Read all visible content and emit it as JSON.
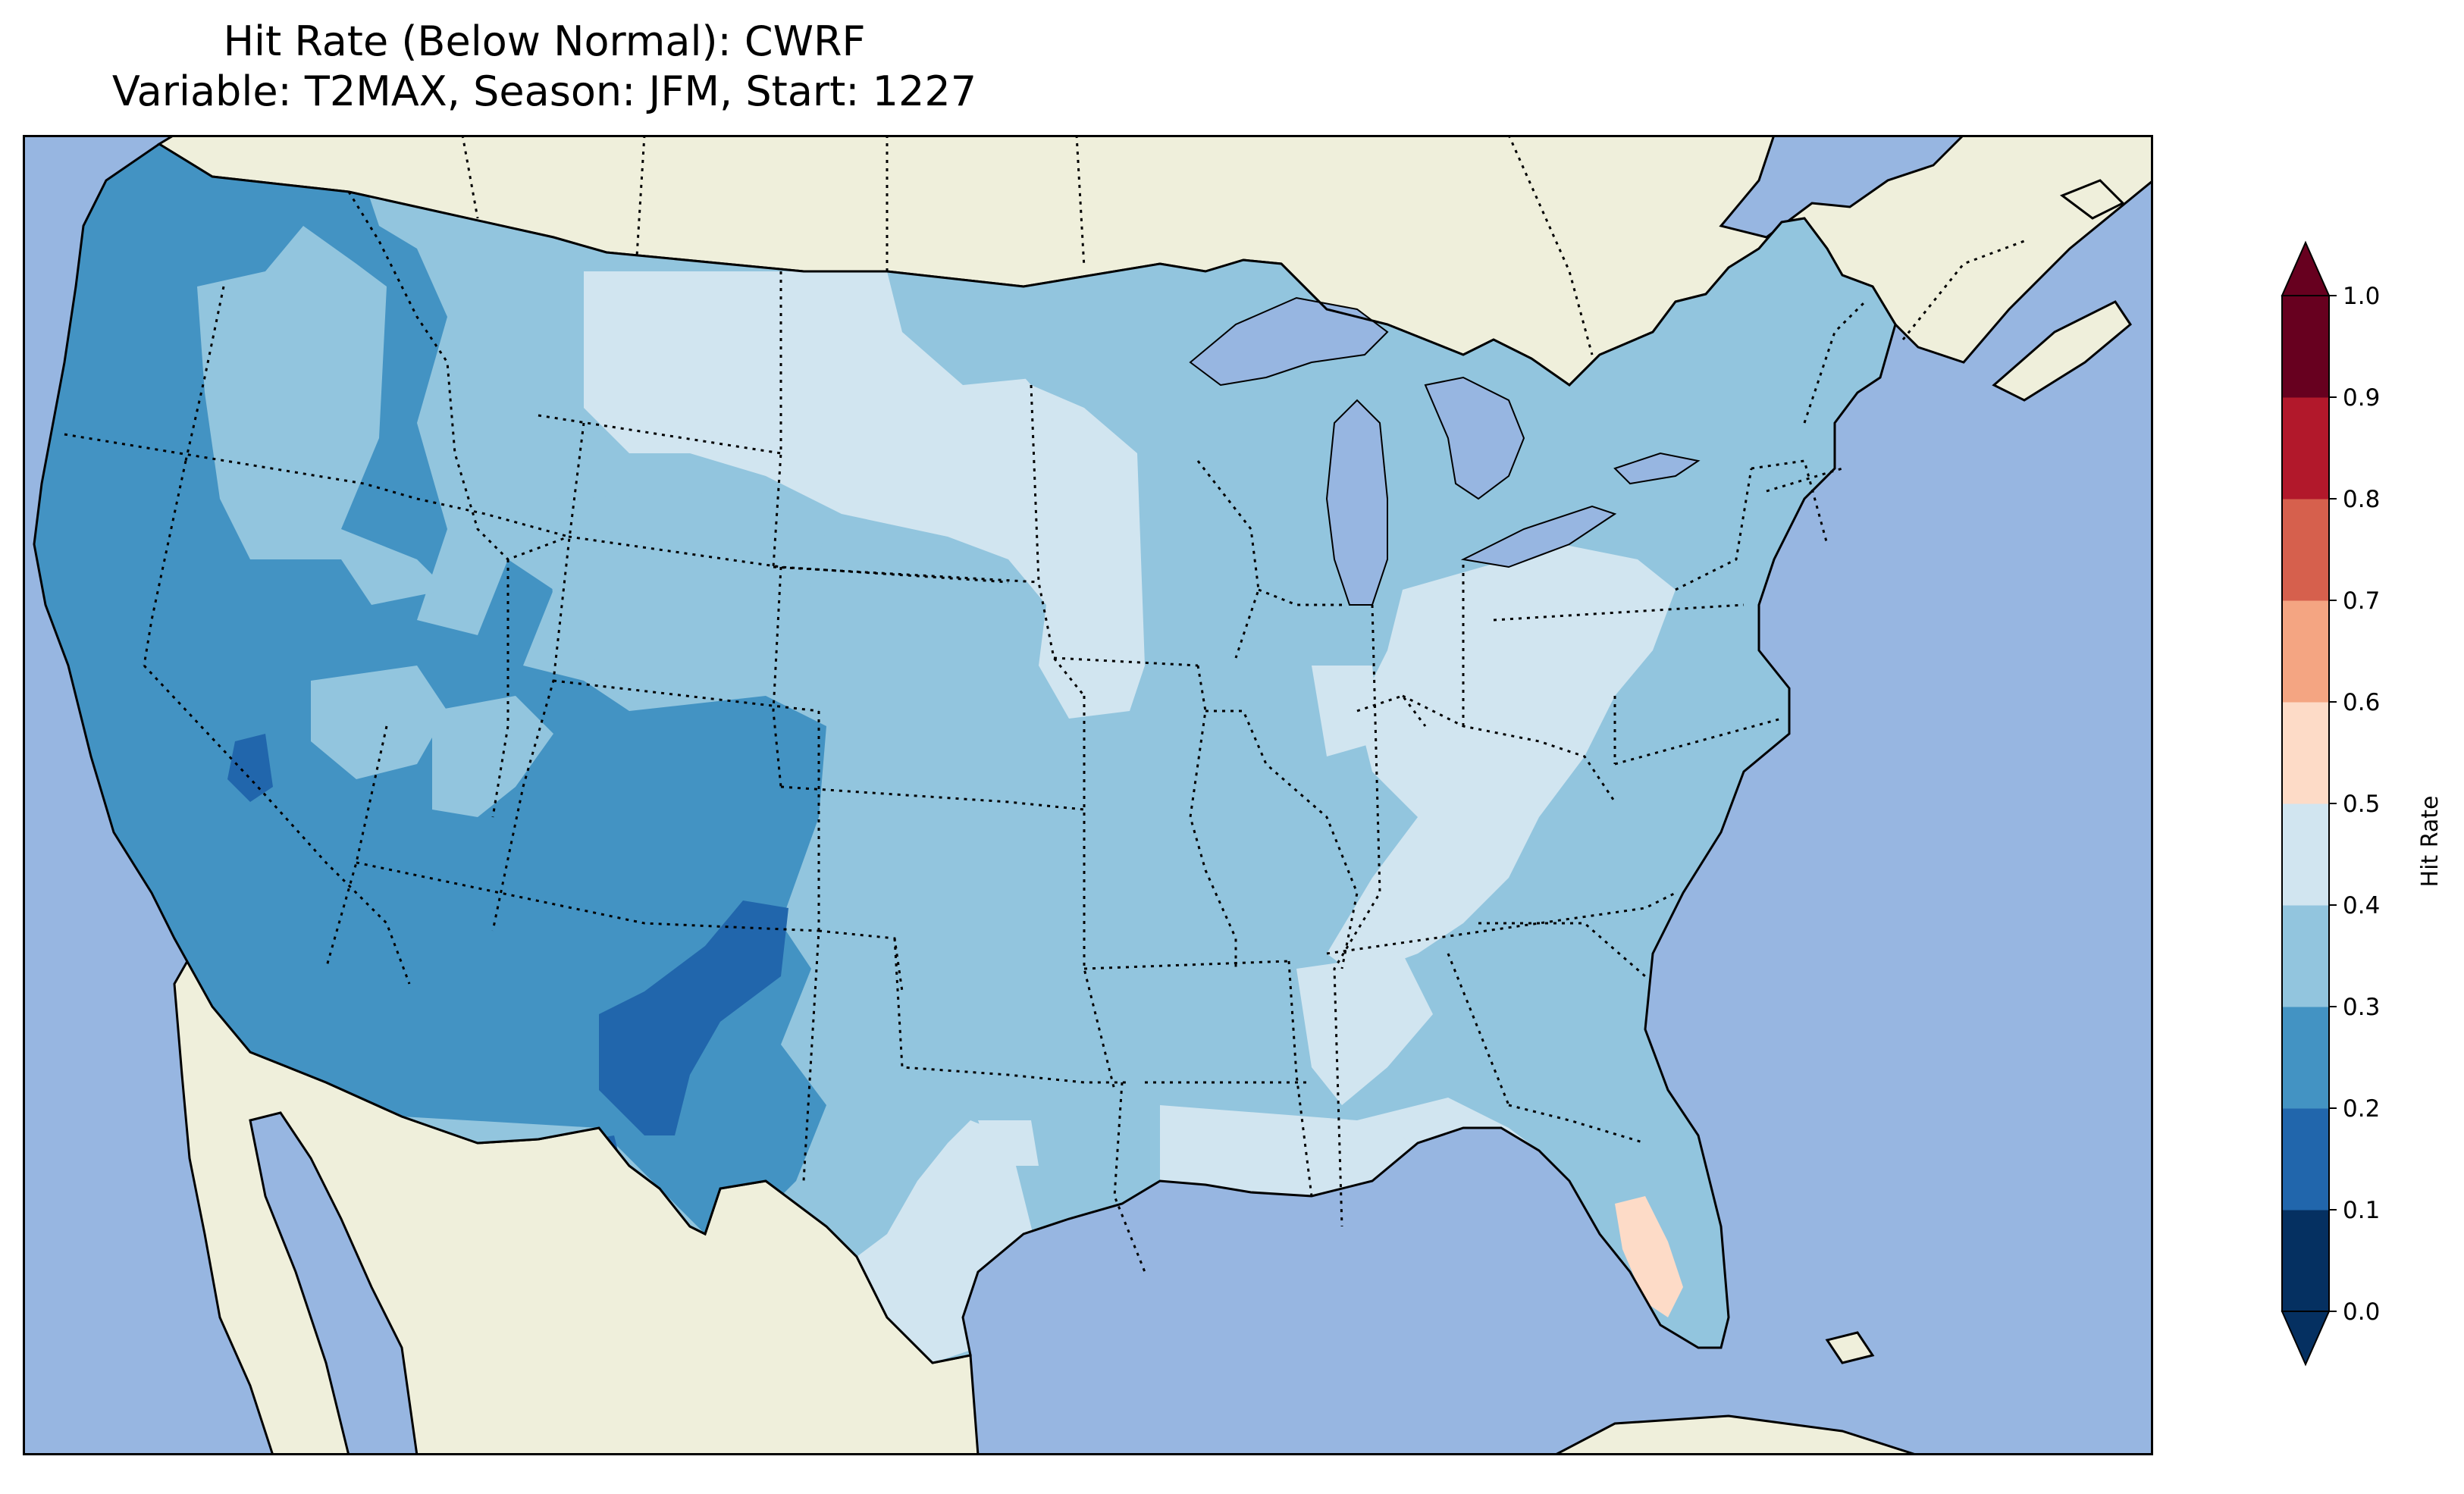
{
  "figure": {
    "title_line1": "Hit Rate (Below Normal): CWRF",
    "title_line2": "Variable: T2MAX, Season: JFM, Start: 1227"
  },
  "map": {
    "projection": "conic",
    "region": "contiguous United States",
    "ocean_color": "#97b6e1",
    "land_color": "#efefdb",
    "features": [
      "coastline",
      "state-borders",
      "country-borders",
      "lakes"
    ]
  },
  "colorbar": {
    "label": "Hit Rate",
    "ticks": [
      "0.0",
      "0.1",
      "0.2",
      "0.3",
      "0.4",
      "0.5",
      "0.6",
      "0.7",
      "0.8",
      "0.9",
      "1.0"
    ],
    "bins": [
      {
        "from": 0.0,
        "to": 0.1,
        "color": "#053061"
      },
      {
        "from": 0.1,
        "to": 0.2,
        "color": "#2166ac"
      },
      {
        "from": 0.2,
        "to": 0.3,
        "color": "#4393c3"
      },
      {
        "from": 0.3,
        "to": 0.4,
        "color": "#92c5de"
      },
      {
        "from": 0.4,
        "to": 0.5,
        "color": "#d1e5f0"
      },
      {
        "from": 0.5,
        "to": 0.6,
        "color": "#fddbc7"
      },
      {
        "from": 0.6,
        "to": 0.7,
        "color": "#f4a582"
      },
      {
        "from": 0.7,
        "to": 0.8,
        "color": "#d6604d"
      },
      {
        "from": 0.8,
        "to": 0.9,
        "color": "#b2182b"
      },
      {
        "from": 0.9,
        "to": 1.0,
        "color": "#67001f"
      }
    ],
    "extend": "both"
  },
  "regions": [
    {
      "name": "Pacific Northwest coast",
      "hit_rate": 0.25
    },
    {
      "name": "California / Nevada",
      "hit_rate": 0.25
    },
    {
      "name": "Interior Northwest",
      "hit_rate": 0.35
    },
    {
      "name": "Northern Plains",
      "hit_rate": 0.45
    },
    {
      "name": "Colorado",
      "hit_rate": 0.25
    },
    {
      "name": "Southwest",
      "hit_rate": 0.25
    },
    {
      "name": "New Mexico core",
      "hit_rate": 0.15
    },
    {
      "name": "Southern Plains",
      "hit_rate": 0.35
    },
    {
      "name": "South Texas",
      "hit_rate": 0.45
    },
    {
      "name": "Midwest",
      "hit_rate": 0.35
    },
    {
      "name": "Ohio Valley",
      "hit_rate": 0.45
    },
    {
      "name": "Southeast",
      "hit_rate": 0.35
    },
    {
      "name": "Gulf Coast / Florida",
      "hit_rate": 0.45
    },
    {
      "name": "South Florida",
      "hit_rate": 0.55
    },
    {
      "name": "Northeast",
      "hit_rate": 0.35
    }
  ]
}
